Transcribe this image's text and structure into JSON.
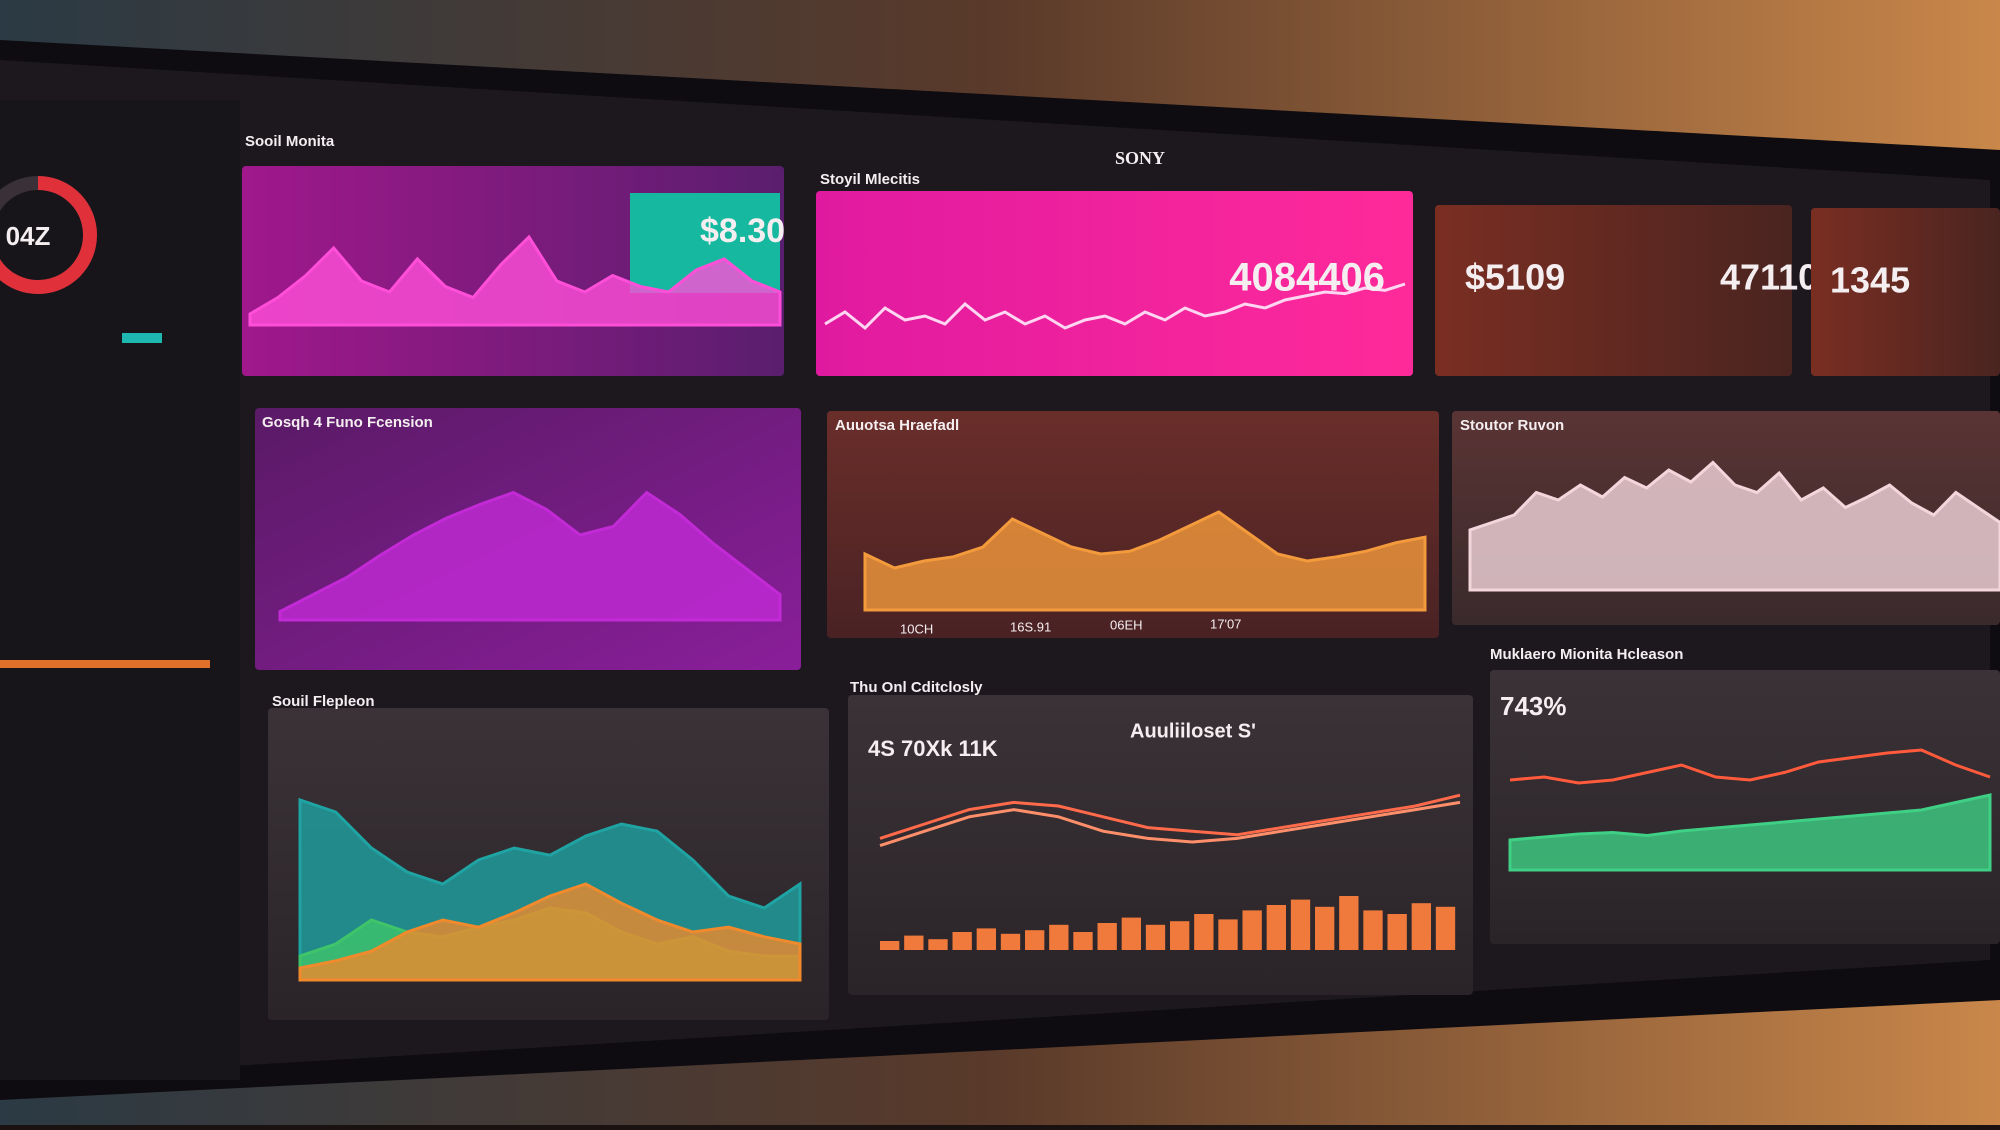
{
  "screen": {
    "brand": "SONY",
    "gauge_label": "04Z"
  },
  "panels": [
    {
      "title": "Sooil Monita",
      "kpis": [
        "$8.30"
      ],
      "series": [
        {
          "kind": "area",
          "color": "#ff4fd8",
          "values": [
            10,
            25,
            45,
            70,
            40,
            30,
            60,
            35,
            25,
            55,
            80,
            40,
            30,
            45,
            35,
            30,
            50,
            60,
            40,
            30
          ]
        }
      ]
    },
    {
      "title": "Stoyil Mlecitis",
      "kpis": [
        "4084406"
      ],
      "series": [
        {
          "kind": "line",
          "color": "#ffd6f2",
          "values": [
            20,
            35,
            15,
            40,
            25,
            30,
            20,
            45,
            25,
            35,
            20,
            30,
            15,
            25,
            30,
            20,
            35,
            25,
            40,
            30,
            35,
            45,
            40,
            50,
            55,
            60,
            58,
            65,
            62,
            70
          ]
        }
      ]
    },
    {
      "kpis": [
        "$5109",
        "47110"
      ]
    },
    {
      "kpis": [
        "1345"
      ]
    },
    {
      "title": "Gosqh 4 Funo Fcension",
      "series": [
        {
          "kind": "area",
          "color": "#c22ad6",
          "values": [
            5,
            15,
            25,
            38,
            50,
            60,
            68,
            75,
            65,
            50,
            55,
            75,
            62,
            45,
            30,
            15
          ]
        }
      ]
    },
    {
      "title": "Auuotsa Hraefadl",
      "labels": [
        "10CH",
        "16S.91",
        "06EH",
        "17'07"
      ],
      "series": [
        {
          "kind": "area",
          "color": "#f39a3c",
          "values": [
            40,
            30,
            35,
            38,
            45,
            65,
            55,
            45,
            40,
            42,
            50,
            60,
            70,
            55,
            40,
            35,
            38,
            42,
            48,
            52
          ]
        }
      ]
    },
    {
      "title": "Stoutor Ruvon",
      "series": [
        {
          "kind": "area",
          "color": "#f3d6dc",
          "values": [
            40,
            45,
            50,
            65,
            60,
            70,
            62,
            75,
            68,
            80,
            72,
            85,
            70,
            65,
            78,
            60,
            68,
            55,
            62,
            70,
            58,
            50,
            65,
            55,
            45
          ]
        }
      ]
    },
    {
      "title": "Souil Flepleon",
      "series": [
        {
          "kind": "area",
          "color": "#1fa3a3",
          "values": [
            75,
            70,
            55,
            45,
            40,
            50,
            55,
            52,
            60,
            65,
            62,
            50,
            35,
            30,
            40
          ]
        },
        {
          "kind": "area",
          "color": "#3fc46a",
          "values": [
            10,
            15,
            25,
            20,
            18,
            22,
            25,
            30,
            28,
            20,
            15,
            18,
            12,
            10,
            10
          ]
        },
        {
          "kind": "area",
          "color": "#f08a2c",
          "values": [
            5,
            8,
            12,
            20,
            25,
            22,
            28,
            35,
            40,
            32,
            25,
            20,
            22,
            18,
            15
          ]
        }
      ]
    },
    {
      "title": "Thu Onl Cditclosly",
      "kpis": [
        "4S 70Xk 11K",
        "Auuliiloset S'"
      ],
      "series": [
        {
          "kind": "line",
          "color": "#ff6a4a",
          "values": [
            62,
            70,
            78,
            82,
            80,
            74,
            68,
            66,
            64,
            68,
            72,
            76,
            80,
            86
          ]
        },
        {
          "kind": "line",
          "color": "#ff8f6a",
          "values": [
            58,
            66,
            74,
            78,
            74,
            66,
            62,
            60,
            62,
            66,
            70,
            74,
            78,
            82
          ]
        },
        {
          "kind": "bars",
          "color": "#f07a3c",
          "values": [
            5,
            8,
            6,
            10,
            12,
            9,
            11,
            14,
            10,
            15,
            18,
            14,
            16,
            20,
            17,
            22,
            25,
            28,
            24,
            30,
            22,
            20,
            26,
            24
          ]
        }
      ]
    },
    {
      "title": "Muklaero Mionita Hcleason",
      "kpis": [
        "743%"
      ],
      "series": [
        {
          "kind": "line",
          "color": "#ff5a3c",
          "values": [
            60,
            62,
            58,
            60,
            65,
            70,
            62,
            60,
            65,
            72,
            75,
            78,
            80,
            70,
            62
          ]
        },
        {
          "kind": "area",
          "color": "#3fcf85",
          "values": [
            20,
            22,
            24,
            25,
            23,
            26,
            28,
            30,
            32,
            34,
            36,
            38,
            40,
            45,
            50
          ]
        }
      ]
    }
  ]
}
